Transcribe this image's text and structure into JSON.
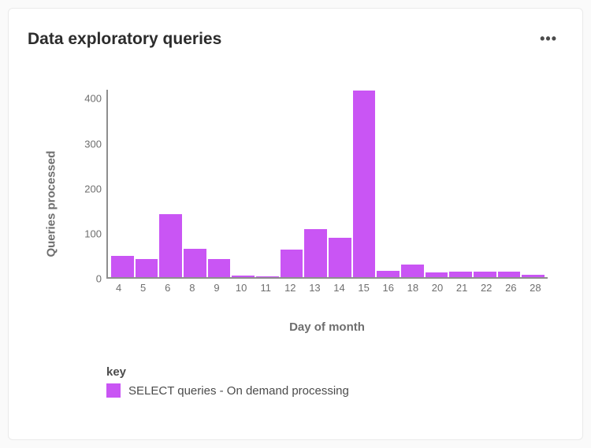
{
  "card": {
    "title": "Data exploratory queries",
    "more_label": "•••"
  },
  "chart": {
    "type": "bar",
    "ylabel": "Queries processed",
    "xlabel": "Day of month",
    "ylim": [
      0,
      420
    ],
    "yticks": [
      0,
      100,
      200,
      300,
      400
    ],
    "categories": [
      "4",
      "5",
      "6",
      "8",
      "9",
      "10",
      "11",
      "12",
      "13",
      "14",
      "15",
      "16",
      "18",
      "20",
      "21",
      "22",
      "26",
      "28"
    ],
    "values": [
      48,
      40,
      142,
      64,
      40,
      4,
      2,
      62,
      108,
      88,
      418,
      14,
      28,
      10,
      12,
      12,
      12,
      6
    ],
    "bar_color": "#c955f4",
    "axis_color": "#8e8e8e",
    "tick_font_size": 13,
    "label_font_size": 15,
    "label_font_weight": 700,
    "text_color": "#6e6e6e",
    "background_color": "#ffffff"
  },
  "legend": {
    "title": "key",
    "items": [
      {
        "label": "SELECT queries - On demand processing",
        "color": "#c955f4"
      }
    ]
  }
}
